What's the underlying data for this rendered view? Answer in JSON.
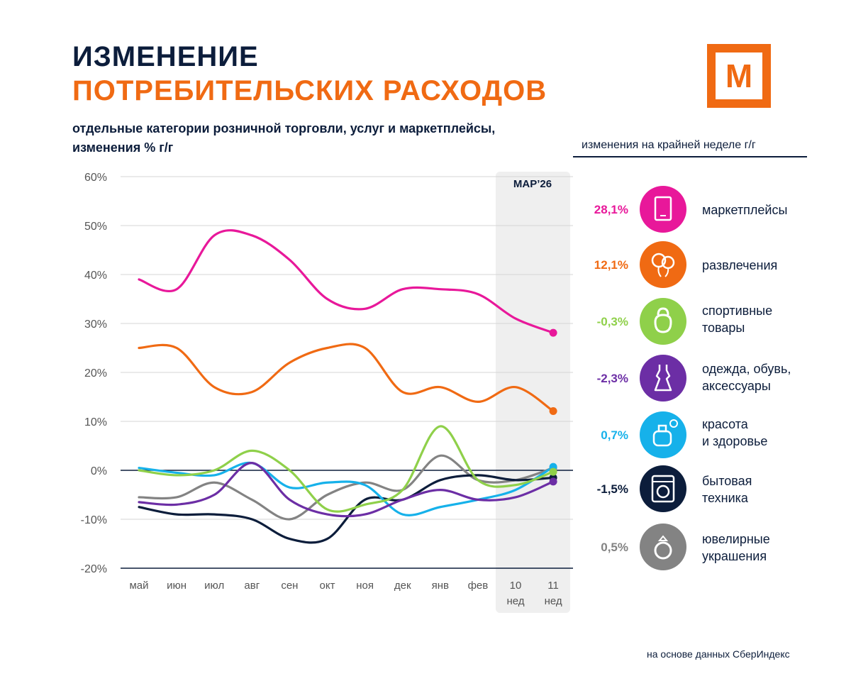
{
  "header": {
    "title_line1": "ИЗМЕНЕНИЕ",
    "title_line2": "ПОТРЕБИТЕЛЬСКИХ РАСХОДОВ",
    "subtitle_line1": "отдельные категории розничной торговли, услуг  и маркетплейсы,",
    "subtitle_line2": "изменения % г/г"
  },
  "logo": {
    "letter": "М"
  },
  "legend_caption": "изменения на крайней неделе г/г",
  "legend": [
    {
      "value": "28,1%",
      "line1": "маркетплейсы",
      "line2": "",
      "color": "#e8189a",
      "icon": "tablet-icon"
    },
    {
      "value": "12,1%",
      "line1": "развлечения",
      "line2": "",
      "color": "#f06a13",
      "icon": "balloons-icon"
    },
    {
      "value": "-0,3%",
      "line1": "спортивные",
      "line2": "товары",
      "color": "#8fd04a",
      "icon": "kettlebell-icon"
    },
    {
      "value": "-2,3%",
      "line1": "одежда, обувь,",
      "line2": "аксессуары",
      "color": "#6c2ea5",
      "icon": "dress-icon"
    },
    {
      "value": "0,7%",
      "line1": "красота",
      "line2": "и здоровье",
      "color": "#16b1ea",
      "icon": "perfume-icon"
    },
    {
      "value": "-1,5%",
      "line1": "бытовая",
      "line2": "техника",
      "color": "#0c1d3b",
      "icon": "washing-machine-icon"
    },
    {
      "value": "0,5%",
      "line1": "ювелирные",
      "line2": "украшения",
      "color": "#838383",
      "icon": "ring-icon"
    }
  ],
  "source": "на основе данных СберИндекс",
  "chart_data": {
    "type": "line",
    "categories": [
      "май",
      "июн",
      "июл",
      "авг",
      "сен",
      "окт",
      "ноя",
      "дек",
      "янв",
      "фев",
      "10 нед",
      "11 нед"
    ],
    "ylim": [
      -20,
      60
    ],
    "yticks": [
      "-20%",
      "-10%",
      "0%",
      "10%",
      "20%",
      "30%",
      "40%",
      "50%",
      "60%"
    ],
    "highlight": {
      "label": "МАР’26",
      "from_index": 10,
      "to_index": 11
    },
    "series": [
      {
        "name": "маркетплейсы",
        "color": "#e8189a",
        "values": [
          39,
          37,
          48,
          48,
          43,
          35,
          33,
          37,
          37,
          36,
          31,
          28.1
        ]
      },
      {
        "name": "развлечения",
        "color": "#f06a13",
        "values": [
          25,
          25,
          17,
          16,
          22,
          25,
          25,
          16,
          17,
          14,
          17,
          12.1
        ]
      },
      {
        "name": "спортивные товары",
        "color": "#8fd04a",
        "values": [
          0,
          -1,
          0,
          4,
          0,
          -8,
          -7,
          -4,
          9,
          -2,
          -3,
          -0.3
        ]
      },
      {
        "name": "одежда, обувь, аксессуары",
        "color": "#6c2ea5",
        "values": [
          -6.5,
          -7,
          -5,
          1.5,
          -6,
          -9,
          -9,
          -6,
          -4,
          -6,
          -5.5,
          -2.3
        ]
      },
      {
        "name": "красота и здоровье",
        "color": "#16b1ea",
        "values": [
          0.5,
          -0.5,
          -1,
          1.5,
          -3.5,
          -2.5,
          -3,
          -9,
          -7.5,
          -6,
          -4,
          0.7
        ]
      },
      {
        "name": "бытовая техника",
        "color": "#0c1d3b",
        "values": [
          -7.5,
          -9,
          -9,
          -10,
          -14,
          -14,
          -6,
          -6,
          -2,
          -1,
          -2,
          -1.5
        ]
      },
      {
        "name": "ювелирные украшения",
        "color": "#838383",
        "values": [
          -5.5,
          -5.5,
          -2.5,
          -6,
          -10,
          -5,
          -2.5,
          -4,
          3,
          -2,
          -2,
          0.5
        ]
      }
    ]
  }
}
